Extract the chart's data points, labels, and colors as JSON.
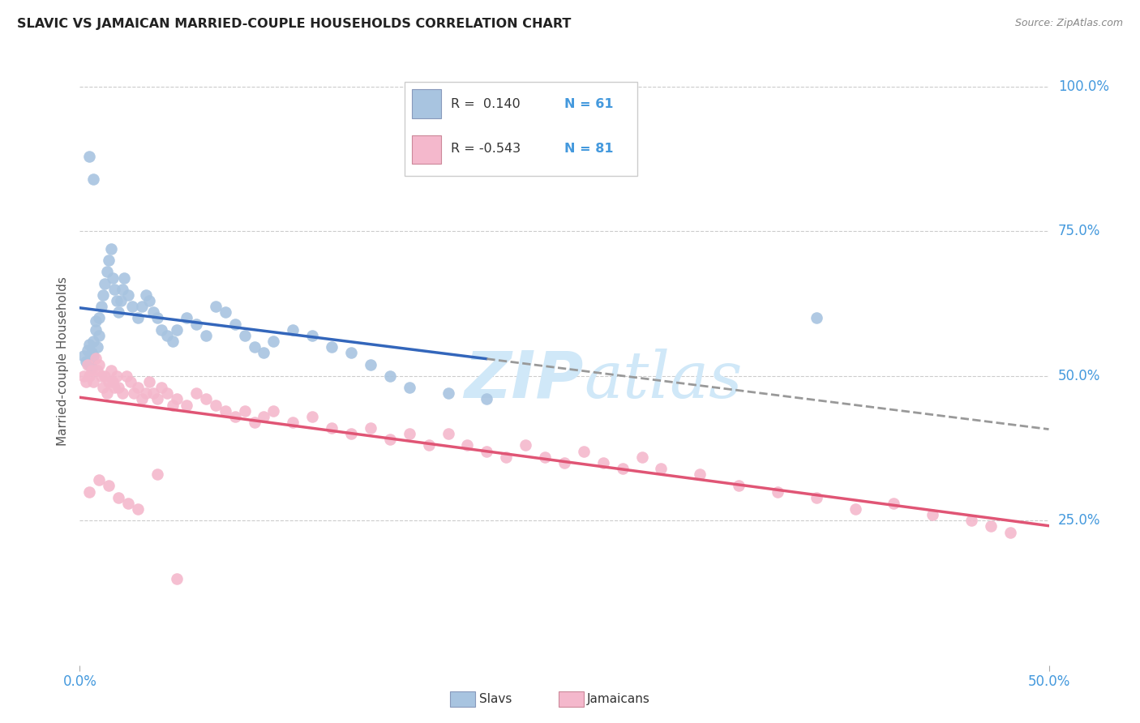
{
  "title": "SLAVIC VS JAMAICAN MARRIED-COUPLE HOUSEHOLDS CORRELATION CHART",
  "source": "Source: ZipAtlas.com",
  "ylabel_label": "Married-couple Households",
  "ytick_labels": [
    "100.0%",
    "75.0%",
    "50.0%",
    "25.0%"
  ],
  "ytick_values": [
    1.0,
    0.75,
    0.5,
    0.25
  ],
  "xtick_values": [
    0.0,
    0.5
  ],
  "xtick_labels": [
    "0.0%",
    "50.0%"
  ],
  "legend_r_slavs": "R =  0.140",
  "legend_n_slavs": "N = 61",
  "legend_r_jamaicans": "R = -0.543",
  "legend_n_jamaicans": "N = 81",
  "slavs_color": "#a8c4e0",
  "jamaicans_color": "#f4b8cc",
  "slavs_line_color": "#3366bb",
  "jamaicans_line_color": "#e05575",
  "background_color": "#ffffff",
  "grid_color": "#cccccc",
  "axis_color": "#4499dd",
  "watermark_color": "#d0e8f8",
  "slavs_x": [
    0.002,
    0.003,
    0.004,
    0.005,
    0.005,
    0.006,
    0.006,
    0.007,
    0.007,
    0.008,
    0.008,
    0.009,
    0.01,
    0.01,
    0.011,
    0.012,
    0.013,
    0.014,
    0.015,
    0.016,
    0.017,
    0.018,
    0.019,
    0.02,
    0.021,
    0.022,
    0.023,
    0.025,
    0.027,
    0.03,
    0.032,
    0.034,
    0.036,
    0.038,
    0.04,
    0.042,
    0.045,
    0.048,
    0.05,
    0.055,
    0.06,
    0.065,
    0.07,
    0.075,
    0.08,
    0.085,
    0.09,
    0.095,
    0.1,
    0.11,
    0.12,
    0.13,
    0.14,
    0.15,
    0.16,
    0.17,
    0.19,
    0.21,
    0.005,
    0.007,
    0.38
  ],
  "slavs_y": [
    0.535,
    0.525,
    0.545,
    0.555,
    0.52,
    0.515,
    0.54,
    0.535,
    0.56,
    0.58,
    0.595,
    0.55,
    0.57,
    0.6,
    0.62,
    0.64,
    0.66,
    0.68,
    0.7,
    0.72,
    0.67,
    0.65,
    0.63,
    0.61,
    0.63,
    0.65,
    0.67,
    0.64,
    0.62,
    0.6,
    0.62,
    0.64,
    0.63,
    0.61,
    0.6,
    0.58,
    0.57,
    0.56,
    0.58,
    0.6,
    0.59,
    0.57,
    0.62,
    0.61,
    0.59,
    0.57,
    0.55,
    0.54,
    0.56,
    0.58,
    0.57,
    0.55,
    0.54,
    0.52,
    0.5,
    0.48,
    0.47,
    0.46,
    0.88,
    0.84,
    0.6
  ],
  "jamaicans_x": [
    0.002,
    0.003,
    0.004,
    0.005,
    0.006,
    0.007,
    0.008,
    0.009,
    0.01,
    0.011,
    0.012,
    0.013,
    0.014,
    0.015,
    0.016,
    0.017,
    0.018,
    0.019,
    0.02,
    0.022,
    0.024,
    0.026,
    0.028,
    0.03,
    0.032,
    0.034,
    0.036,
    0.038,
    0.04,
    0.042,
    0.045,
    0.048,
    0.05,
    0.055,
    0.06,
    0.065,
    0.07,
    0.075,
    0.08,
    0.085,
    0.09,
    0.095,
    0.1,
    0.11,
    0.12,
    0.13,
    0.14,
    0.15,
    0.16,
    0.17,
    0.18,
    0.19,
    0.2,
    0.21,
    0.22,
    0.23,
    0.24,
    0.25,
    0.26,
    0.27,
    0.28,
    0.29,
    0.3,
    0.32,
    0.34,
    0.36,
    0.38,
    0.4,
    0.42,
    0.44,
    0.46,
    0.47,
    0.48,
    0.005,
    0.01,
    0.015,
    0.02,
    0.025,
    0.03,
    0.04,
    0.05
  ],
  "jamaicans_y": [
    0.5,
    0.49,
    0.52,
    0.5,
    0.51,
    0.49,
    0.53,
    0.51,
    0.52,
    0.5,
    0.48,
    0.5,
    0.47,
    0.49,
    0.51,
    0.49,
    0.48,
    0.5,
    0.48,
    0.47,
    0.5,
    0.49,
    0.47,
    0.48,
    0.46,
    0.47,
    0.49,
    0.47,
    0.46,
    0.48,
    0.47,
    0.45,
    0.46,
    0.45,
    0.47,
    0.46,
    0.45,
    0.44,
    0.43,
    0.44,
    0.42,
    0.43,
    0.44,
    0.42,
    0.43,
    0.41,
    0.4,
    0.41,
    0.39,
    0.4,
    0.38,
    0.4,
    0.38,
    0.37,
    0.36,
    0.38,
    0.36,
    0.35,
    0.37,
    0.35,
    0.34,
    0.36,
    0.34,
    0.33,
    0.31,
    0.3,
    0.29,
    0.27,
    0.28,
    0.26,
    0.25,
    0.24,
    0.23,
    0.3,
    0.32,
    0.31,
    0.29,
    0.28,
    0.27,
    0.33,
    0.15
  ]
}
